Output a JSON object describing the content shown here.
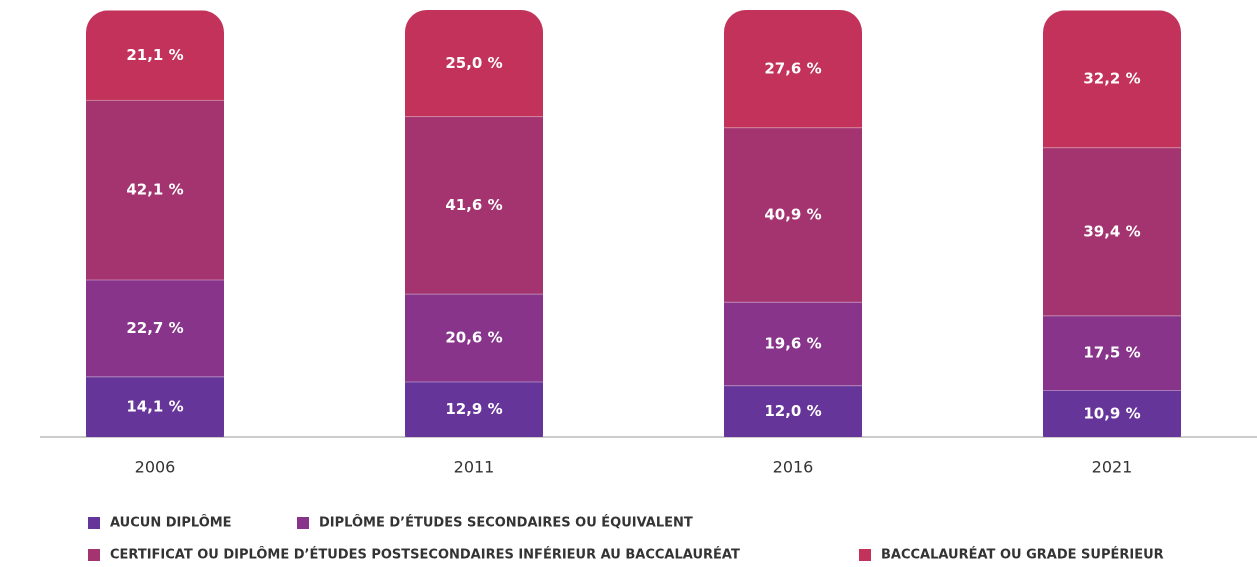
{
  "chart_data": {
    "type": "stacked_bar",
    "categories": [
      "2006",
      "2011",
      "2016",
      "2021"
    ],
    "series": [
      {
        "name": "AUCUN DIPLÔME",
        "color": "#66359a",
        "values": [
          14.1,
          12.9,
          12.0,
          10.9
        ],
        "value_labels": [
          "14,1 %",
          "12,9 %",
          "12,0 %",
          "10,9 %"
        ]
      },
      {
        "name": "DIPLÔME D’ÉTUDES SECONDAIRES OU ÉQUIVALENT",
        "color": "#87348a",
        "values": [
          22.7,
          20.6,
          19.6,
          17.5
        ],
        "value_labels": [
          "22,7 %",
          "20,6 %",
          "19,6 %",
          "17,5 %"
        ]
      },
      {
        "name": "CERTIFICAT OU DIPLÔME D’ÉTUDES POSTSECONDAIRES INFÉRIEUR AU BACCALAURÉAT",
        "color": "#a3346f",
        "values": [
          42.1,
          41.6,
          40.9,
          39.4
        ],
        "value_labels": [
          "42,1 %",
          "41,6 %",
          "40,9 %",
          "39,4 %"
        ]
      },
      {
        "name": "BACCALAURÉAT OU GRADE SUPÉRIEUR",
        "color": "#c2325a",
        "values": [
          21.1,
          25.0,
          27.6,
          32.2
        ],
        "value_labels": [
          "21,1 %",
          "25,0 %",
          "27,6 %",
          "32,2 %"
        ]
      }
    ]
  }
}
